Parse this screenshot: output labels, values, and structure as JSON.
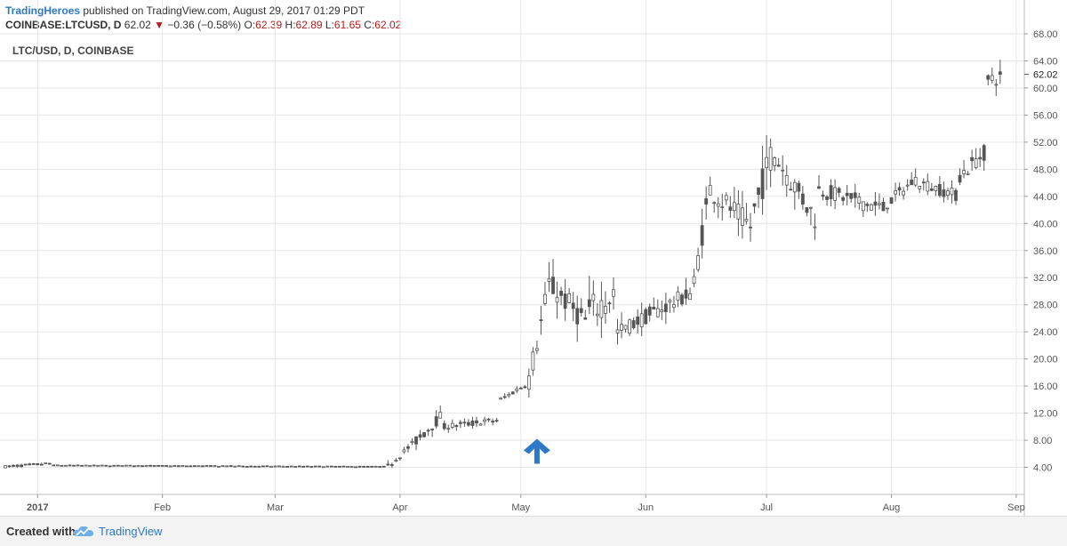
{
  "header": {
    "publisher": "TradingHeroes",
    "published_text": "published on TradingView.com, August 29, 2017 01:29 PDT",
    "symbol": "COINBASE:LTCUSD, D",
    "last": "62.02",
    "change": "−0.36 (−0.58%)",
    "o_label": "O:",
    "o_value": "62.39",
    "h_label": "H:",
    "h_value": "62.89",
    "l_label": "L:",
    "l_value": "61.65",
    "c_label": "C:",
    "c_value": "62.02"
  },
  "footer": {
    "created_with": "Created with",
    "brand": "TradingView",
    "logo_icon": "tradingview-cloud-icon"
  },
  "colors": {
    "up": "#ffffff",
    "down": "#555555",
    "wick": "#555555",
    "grid": "#e6e6e6",
    "arrow": "#2e79c7",
    "accent": "#2d79c7",
    "negative": "#b71c1c"
  },
  "annotation_icon": "up-arrow-icon",
  "chart_data": {
    "type": "candlestick",
    "watermark": "LTC/USD, D, COINBASE",
    "y_ticks": [
      "4.00",
      "8.00",
      "12.00",
      "16.00",
      "20.00",
      "24.00",
      "28.00",
      "32.00",
      "36.00",
      "40.00",
      "44.00",
      "48.00",
      "52.00",
      "56.00",
      "60.00",
      "64.00",
      "68.00"
    ],
    "ylim": [
      0,
      68
    ],
    "last_price_label": "62.02",
    "last_price": 62.02,
    "x_ticks": [
      {
        "label": "2017",
        "date": "2017-01-01"
      },
      {
        "label": "Feb",
        "date": "2017-02-01"
      },
      {
        "label": "Mar",
        "date": "2017-03-01"
      },
      {
        "label": "Apr",
        "date": "2017-04-01"
      },
      {
        "label": "May",
        "date": "2017-05-01"
      },
      {
        "label": "Jun",
        "date": "2017-06-01"
      },
      {
        "label": "Jul",
        "date": "2017-07-01"
      },
      {
        "label": "Aug",
        "date": "2017-08-01"
      },
      {
        "label": "Sep",
        "date": "2017-09-01"
      }
    ],
    "xlim": [
      "2016-12-24",
      "2017-09-03"
    ],
    "annotation": {
      "type": "up-arrow",
      "date": "2017-05-05",
      "value": 8.2
    },
    "segments": [
      {
        "start": "2016-12-24",
        "end": "2017-01-05",
        "from": 4.1,
        "to": 4.6,
        "noise": 0.3
      },
      {
        "start": "2017-01-05",
        "end": "2017-03-29",
        "from": 4.3,
        "to": 4.1,
        "noise": 0.1
      },
      {
        "start": "2017-03-29",
        "end": "2017-04-05",
        "from": 4.1,
        "to": 8.0,
        "noise": 0.7
      },
      {
        "start": "2017-04-05",
        "end": "2017-04-12",
        "from": 8.0,
        "to": 12.0,
        "noise": 1.4
      },
      {
        "start": "2017-04-12",
        "end": "2017-04-26",
        "from": 10.0,
        "to": 11.0,
        "noise": 0.8
      },
      {
        "start": "2017-04-26",
        "end": "2017-05-03",
        "from": 14.0,
        "to": 16.5,
        "noise": 0.6
      },
      {
        "start": "2017-05-03",
        "end": "2017-05-08",
        "from": 17.0,
        "to": 31.0,
        "noise": 3.0
      },
      {
        "start": "2017-05-08",
        "end": "2017-05-18",
        "from": 31.0,
        "to": 25.0,
        "noise": 3.0
      },
      {
        "start": "2017-05-18",
        "end": "2017-05-25",
        "from": 27.0,
        "to": 30.0,
        "noise": 4.0
      },
      {
        "start": "2017-05-25",
        "end": "2017-06-13",
        "from": 24.0,
        "to": 30.0,
        "noise": 2.0
      },
      {
        "start": "2017-06-13",
        "end": "2017-06-17",
        "from": 31.0,
        "to": 46.0,
        "noise": 3.0
      },
      {
        "start": "2017-06-17",
        "end": "2017-06-28",
        "from": 45.0,
        "to": 39.0,
        "noise": 3.0
      },
      {
        "start": "2017-06-28",
        "end": "2017-07-03",
        "from": 42.0,
        "to": 52.0,
        "noise": 4.0
      },
      {
        "start": "2017-07-03",
        "end": "2017-07-14",
        "from": 50.0,
        "to": 40.0,
        "noise": 3.0
      },
      {
        "start": "2017-07-14",
        "end": "2017-07-31",
        "from": 45.0,
        "to": 42.0,
        "noise": 2.0
      },
      {
        "start": "2017-07-31",
        "end": "2017-08-08",
        "from": 43.0,
        "to": 47.0,
        "noise": 1.5
      },
      {
        "start": "2017-08-08",
        "end": "2017-08-18",
        "from": 46.0,
        "to": 44.0,
        "noise": 1.5
      },
      {
        "start": "2017-08-18",
        "end": "2017-08-25",
        "from": 47.0,
        "to": 51.0,
        "noise": 2.0
      },
      {
        "start": "2017-08-25",
        "end": "2017-08-29",
        "from": 61.0,
        "to": 62.0,
        "noise": 2.0
      }
    ]
  }
}
